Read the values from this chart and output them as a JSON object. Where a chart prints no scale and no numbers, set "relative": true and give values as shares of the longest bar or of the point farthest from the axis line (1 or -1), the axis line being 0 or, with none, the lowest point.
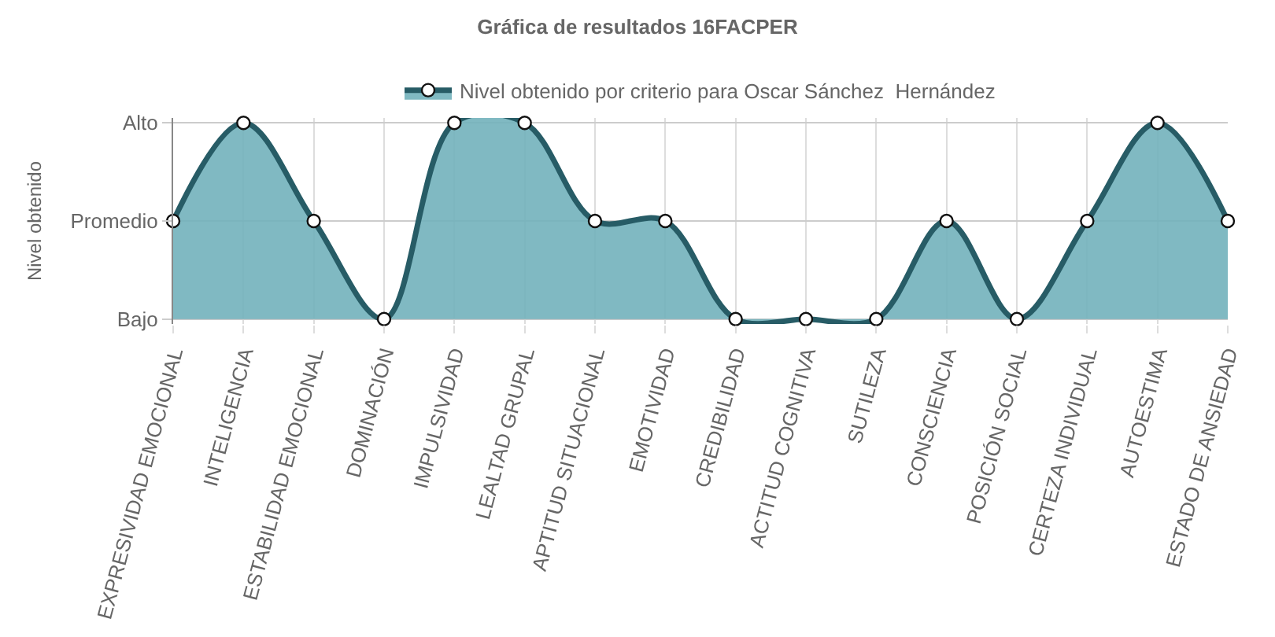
{
  "chart_data": {
    "type": "area",
    "title": "Gráfica de resultados 16FACPER",
    "ylabel": "Nivel obtenido",
    "categories": [
      "EXPRESIVIDAD EMOCIONAL",
      "INTELIGENCIA",
      "ESTABILIDAD EMOCIONAL",
      "DOMINACIÓN",
      "IMPULSIVIDAD",
      "LEALTAD GRUPAL",
      "APTITUD SITUACIONAL",
      "EMOTIVIDAD",
      "CREDIBILIDAD",
      "ACTITUD COGNITIVA",
      "SUTILEZA",
      "CONSCIENCIA",
      "POSICIÓN SOCIAL",
      "CERTEZA INDIVIDUAL",
      "AUTOESTIMA",
      "ESTADO DE ANSIEDAD"
    ],
    "series": [
      {
        "name": "Nivel obtenido por criterio para Oscar Sánchez  Hernández",
        "color": "#275c66",
        "values": [
          0.5,
          1,
          0.5,
          0,
          1,
          1,
          0.5,
          0.5,
          0,
          0,
          0,
          0.5,
          0,
          0.5,
          1,
          0.5
        ]
      }
    ],
    "relative": true,
    "y_categories": [
      "Alto",
      "Promedio",
      "Bajo"
    ],
    "grid": true,
    "legend": "top",
    "marker": "circle",
    "line_style": "solid"
  }
}
